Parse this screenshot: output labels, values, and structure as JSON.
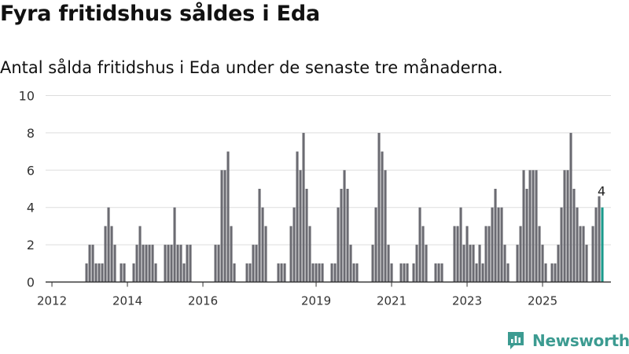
{
  "title": "Fyra fritidshus såldes i Eda",
  "subtitle": "Antal sålda fritidshus i Eda under de senaste tre månaderna.",
  "brand": "Newsworthy",
  "colors": {
    "bar": "#6b6b72",
    "highlight": "#1a9a8b",
    "grid": "#dddddd",
    "axis": "#333333",
    "brand": "#3c9b91"
  },
  "chart_data": {
    "type": "bar",
    "x_start": "2012-01",
    "x_interval": "month",
    "ylim": [
      0,
      10
    ],
    "yticks": [
      0,
      2,
      4,
      6,
      8,
      10
    ],
    "xticks": [
      "2012",
      "2014",
      "2016",
      "2019",
      "2021",
      "2023",
      "2025"
    ],
    "values": [
      0,
      0,
      0,
      0,
      0,
      0,
      0,
      0,
      0,
      0,
      0,
      1,
      2,
      2,
      1,
      1,
      1,
      3,
      4,
      3,
      2,
      0,
      1,
      1,
      0,
      0,
      1,
      2,
      3,
      2,
      2,
      2,
      2,
      1,
      0,
      0,
      2,
      2,
      2,
      4,
      2,
      2,
      1,
      2,
      2,
      0,
      0,
      0,
      0,
      0,
      0,
      0,
      2,
      2,
      6,
      6,
      7,
      3,
      1,
      0,
      0,
      0,
      1,
      1,
      2,
      2,
      5,
      4,
      3,
      0,
      0,
      0,
      1,
      1,
      1,
      0,
      3,
      4,
      7,
      6,
      8,
      5,
      3,
      1,
      1,
      1,
      1,
      0,
      0,
      1,
      1,
      4,
      5,
      6,
      5,
      2,
      1,
      1,
      0,
      0,
      0,
      0,
      2,
      4,
      8,
      7,
      6,
      2,
      1,
      0,
      0,
      1,
      1,
      1,
      0,
      1,
      2,
      4,
      3,
      2,
      0,
      0,
      1,
      1,
      1,
      0,
      0,
      0,
      3,
      3,
      4,
      2,
      3,
      2,
      2,
      1,
      2,
      1,
      3,
      3,
      4,
      5,
      4,
      4,
      2,
      1,
      0,
      0,
      2,
      3,
      6,
      5,
      6,
      6,
      6,
      3,
      2,
      1,
      0,
      1,
      1,
      2,
      4,
      6,
      6,
      8,
      5,
      4,
      3,
      3,
      2,
      0,
      3,
      4,
      4.6,
      4
    ],
    "highlight": {
      "value": 4,
      "label": "4"
    }
  }
}
